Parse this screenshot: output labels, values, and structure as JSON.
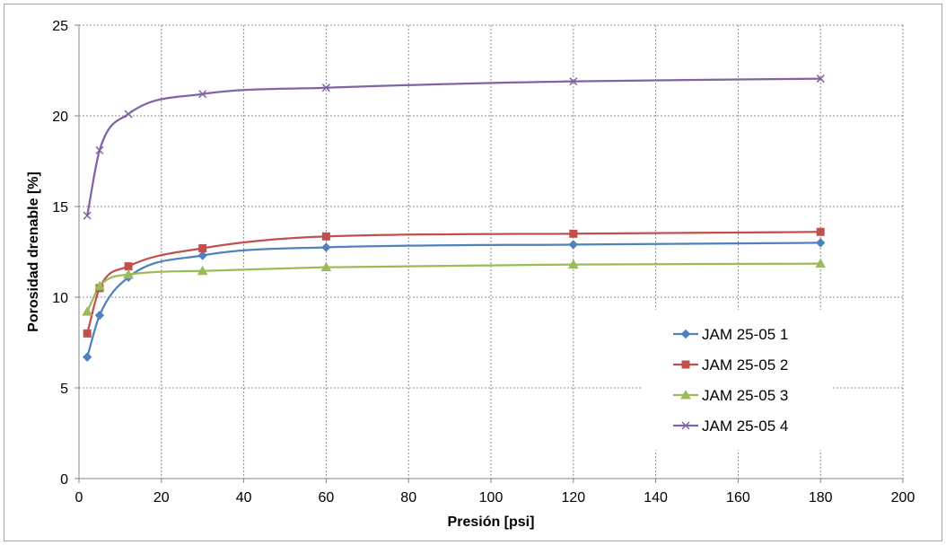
{
  "chart_data": {
    "type": "line",
    "title": "",
    "xlabel": "Presión [psi]",
    "ylabel": "Porosidad drenable [%]",
    "xlim": [
      0,
      200
    ],
    "ylim": [
      0,
      25
    ],
    "xticks": [
      0,
      20,
      40,
      60,
      80,
      100,
      120,
      140,
      160,
      180,
      200
    ],
    "yticks": [
      0,
      5,
      10,
      15,
      20,
      25
    ],
    "grid": true,
    "smooth": true,
    "legend_position": "lower-right",
    "x": [
      2,
      5,
      12,
      30,
      60,
      120,
      180
    ],
    "series": [
      {
        "name": "JAM 25-05 1",
        "color": "#4f81bd",
        "marker": "diamond",
        "values": [
          6.7,
          9.0,
          11.1,
          12.3,
          12.75,
          12.9,
          13.0
        ]
      },
      {
        "name": "JAM 25-05 2",
        "color": "#c0504d",
        "marker": "square",
        "values": [
          8.0,
          10.5,
          11.7,
          12.7,
          13.35,
          13.5,
          13.6
        ]
      },
      {
        "name": "JAM 25-05 3",
        "color": "#9bbb59",
        "marker": "triangle",
        "values": [
          9.2,
          10.6,
          11.25,
          11.45,
          11.65,
          11.8,
          11.85
        ]
      },
      {
        "name": "JAM 25-05 4",
        "color": "#8064a2",
        "marker": "x",
        "values": [
          14.5,
          18.1,
          20.1,
          21.2,
          21.55,
          21.9,
          22.05
        ]
      }
    ]
  }
}
